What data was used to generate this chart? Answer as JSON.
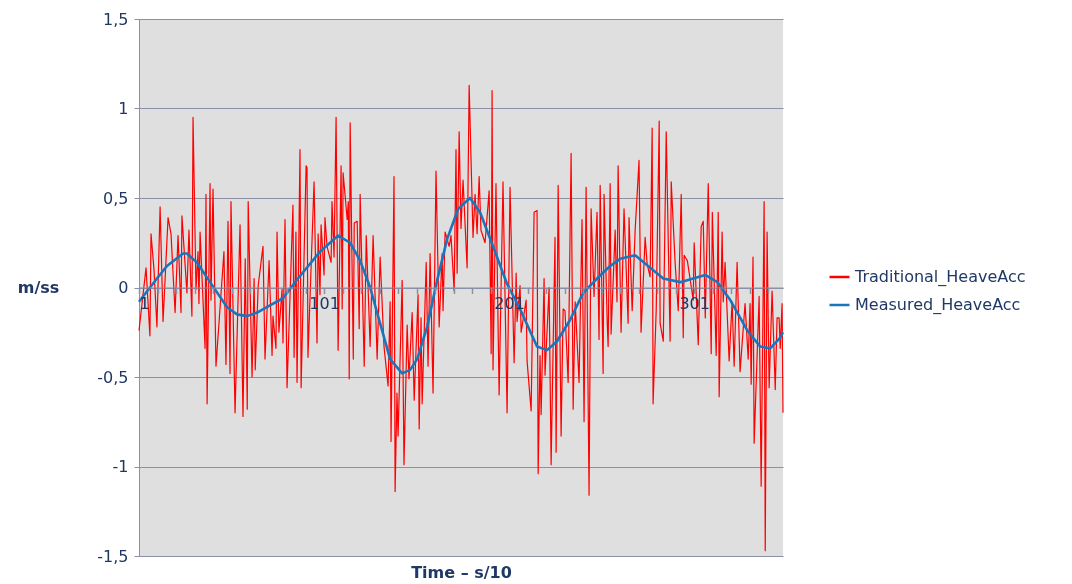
{
  "chart_data": {
    "type": "line",
    "xlabel": "Time – s/10",
    "ylabel": "m/ss",
    "xlim": [
      1,
      349
    ],
    "ylim": [
      -1.5,
      1.5
    ],
    "xticks": [
      1,
      {
        "value": 11,
        "label": null
      },
      {
        "value": 21,
        "label": null
      },
      {
        "value": 31,
        "label": null
      },
      {
        "value": 41,
        "label": null
      },
      {
        "value": 51,
        "label": null
      },
      {
        "value": 61,
        "label": null
      },
      {
        "value": 71,
        "label": null
      },
      {
        "value": 81,
        "label": null
      },
      {
        "value": 91,
        "label": null
      },
      101,
      {
        "value": 111,
        "label": null
      },
      {
        "value": 121,
        "label": null
      },
      {
        "value": 131,
        "label": null
      },
      {
        "value": 141,
        "label": null
      },
      {
        "value": 151,
        "label": null
      },
      {
        "value": 161,
        "label": null
      },
      {
        "value": 171,
        "label": null
      },
      {
        "value": 181,
        "label": null
      },
      {
        "value": 191,
        "label": null
      },
      201,
      {
        "value": 211,
        "label": null
      },
      {
        "value": 221,
        "label": null
      },
      {
        "value": 231,
        "label": null
      },
      {
        "value": 241,
        "label": null
      },
      {
        "value": 251,
        "label": null
      },
      {
        "value": 261,
        "label": null
      },
      {
        "value": 271,
        "label": null
      },
      {
        "value": 281,
        "label": null
      },
      {
        "value": 291,
        "label": null
      },
      301,
      {
        "value": 311,
        "label": null
      },
      {
        "value": 321,
        "label": null
      },
      {
        "value": 331,
        "label": null
      },
      {
        "value": 341,
        "label": null
      }
    ],
    "yticks": [
      {
        "value": -1.5,
        "label": "-1,5"
      },
      -1,
      {
        "value": -0.5,
        "label": "-0,5"
      },
      0,
      {
        "value": 0.5,
        "label": "0,5"
      },
      1,
      {
        "value": 1.5,
        "label": "1,5"
      }
    ],
    "grid": "y",
    "legend": "right",
    "series": [
      {
        "name": "Traditional_HeaveAcc",
        "color": "#ff0000",
        "x": [
          1.0,
          4.8,
          6.9,
          7.5,
          9.1,
          10.7,
          12.4,
          14.0,
          16.7,
          18.3,
          20.5,
          22.1,
          23.7,
          24.2,
          26.9,
          28.0,
          29.6,
          30.2,
          31.8,
          32.9,
          33.4,
          34.0,
          36.7,
          37.2,
          37.8,
          39.4,
          39.9,
          41.0,
          42.6,
          46.9,
          48.0,
          49.1,
          50.2,
          50.7,
          52.9,
          55.6,
          57.2,
          58.4,
          59.5,
          60.0,
          62.1,
          63.2,
          63.8,
          65.4,
          68.0,
          69.1,
          71.3,
          72.9,
          73.4,
          75.0,
          75.6,
          76.6,
          78.3,
          78.8,
          79.9,
          81.0,
          84.2,
          84.8,
          85.8,
          86.4,
          88.0,
          88.6,
          91.3,
          91.8,
          92.3,
          95.6,
          97.2,
          97.8,
          98.8,
          99.4,
          101.0,
          101.5,
          102.6,
          104.8,
          105.3,
          106.4,
          107.5,
          108.6,
          110.2,
          110.8,
          111.3,
          113.5,
          114.1,
          114.6,
          115.1,
          116.8,
          117.3,
          118.9,
          120.0,
          120.5,
          122.7,
          123.8,
          125.9,
          127.5,
          129.7,
          131.3,
          133.4,
          135.6,
          136.7,
          137.2,
          138.8,
          139.4,
          140.4,
          141.0,
          143.2,
          144.2,
          145.9,
          146.9,
          148.6,
          149.7,
          151.8,
          152.4,
          153.4,
          154.0,
          156.2,
          157.2,
          158.3,
          159.9,
          161.5,
          163.2,
          164.8,
          165.3,
          166.4,
          168.6,
          169.6,
          171.3,
          172.3,
          172.9,
          174.0,
          175.0,
          176.1,
          178.3,
          179.4,
          181.5,
          182.6,
          183.7,
          184.8,
          185.8,
          188.0,
          190.2,
          191.3,
          191.8,
          192.3,
          193.9,
          195.6,
          197.7,
          199.9,
          201.5,
          203.7,
          204.8,
          205.3,
          206.9,
          207.5,
          210.2,
          210.7,
          212.9,
          214.5,
          216.1,
          216.7,
          217.7,
          218.3,
          219.9,
          220.4,
          222.6,
          223.7,
          225.8,
          226.4,
          227.5,
          229.1,
          230.2,
          231.2,
          232.9,
          234.5,
          235.6,
          236.7,
          238.8,
          240.4,
          241.5,
          242.6,
          244.2,
          245.3,
          246.9,
          248.5,
          249.6,
          250.2,
          251.8,
          252.3,
          254.0,
          254.5,
          255.6,
          256.1,
          258.3,
          259.3,
          259.9,
          261.5,
          263.1,
          265.3,
          265.8,
          267.5,
          269.1,
          271.2,
          272.3,
          274.5,
          275.6,
          277.2,
          278.3,
          278.8,
          280.5,
          282.1,
          282.6,
          284.3,
          285.9,
          288.0,
          288.6,
          290.7,
          292.4,
          294.0,
          295.1,
          295.6,
          297.3,
          300.5,
          301.0,
          303.2,
          304.8,
          305.9,
          307.0,
          308.6,
          310.2,
          310.8,
          312.9,
          314.0,
          314.5,
          316.1,
          316.7,
          317.7,
          319.9,
          321.5,
          322.6,
          324.2,
          325.8,
          328.5,
          330.2,
          331.2,
          331.8,
          332.8,
          333.4,
          336.1,
          337.2,
          338.8,
          339.4,
          340.4,
          341.5,
          343.1,
          344.8,
          345.8,
          346.9,
          347.5,
          348.5,
          349.0
        ],
        "values": [
          -0.24,
          0.11,
          -0.27,
          0.3,
          0.1,
          -0.22,
          0.45,
          -0.19,
          0.39,
          0.3,
          -0.14,
          0.29,
          -0.14,
          0.4,
          -0.03,
          0.32,
          -0.16,
          0.95,
          -0.01,
          0.2,
          -0.09,
          0.31,
          -0.34,
          0.52,
          -0.65,
          0.58,
          -0.07,
          0.55,
          -0.44,
          0.2,
          -0.43,
          0.37,
          -0.48,
          0.48,
          -0.7,
          0.35,
          -0.72,
          0.16,
          -0.68,
          0.48,
          -0.5,
          0.05,
          -0.46,
          0.01,
          0.23,
          -0.4,
          0.15,
          -0.38,
          -0.16,
          -0.34,
          0.31,
          -0.25,
          -0.01,
          -0.31,
          0.38,
          -0.56,
          0.46,
          -0.39,
          0.31,
          -0.53,
          0.77,
          -0.56,
          0.68,
          0.67,
          -0.39,
          0.59,
          -0.31,
          0.3,
          -0.04,
          0.35,
          0.07,
          0.39,
          0.23,
          0.14,
          0.48,
          0.17,
          0.95,
          -0.35,
          0.68,
          -0.12,
          0.64,
          0.38,
          0.48,
          -0.51,
          0.92,
          -0.4,
          0.36,
          0.37,
          -0.23,
          0.52,
          -0.44,
          0.29,
          -0.33,
          0.29,
          -0.4,
          0.17,
          -0.33,
          -0.55,
          -0.08,
          -0.86,
          0.62,
          -1.14,
          -0.59,
          -0.83,
          0.04,
          -0.99,
          -0.21,
          -0.51,
          -0.14,
          -0.63,
          -0.04,
          -0.79,
          -0.17,
          -0.65,
          0.14,
          -0.44,
          0.19,
          -0.59,
          0.65,
          -0.22,
          0.19,
          -0.13,
          0.31,
          0.23,
          0.29,
          -0.02,
          0.77,
          0.08,
          0.87,
          0.33,
          0.6,
          0.11,
          1.13,
          0.28,
          0.52,
          0.3,
          0.62,
          0.32,
          0.25,
          0.54,
          -0.37,
          1.1,
          -0.46,
          0.58,
          -0.6,
          0.59,
          -0.7,
          0.56,
          -0.42,
          0.08,
          -0.19,
          0.01,
          -0.25,
          -0.07,
          -0.41,
          -0.69,
          0.42,
          0.43,
          -1.04,
          -0.38,
          -0.71,
          0.05,
          -0.49,
          0.0,
          -0.99,
          0.28,
          -0.92,
          0.57,
          -0.83,
          -0.12,
          -0.13,
          -0.53,
          0.75,
          -0.68,
          -0.08,
          -0.53,
          0.38,
          -0.75,
          0.56,
          -1.16,
          0.44,
          -0.05,
          0.42,
          -0.29,
          0.57,
          -0.48,
          0.52,
          -0.19,
          -0.33,
          0.58,
          -0.26,
          0.32,
          -0.08,
          0.68,
          -0.25,
          0.44,
          -0.2,
          0.39,
          -0.13,
          0.32,
          0.71,
          -0.25,
          0.28,
          0.13,
          0.06,
          0.89,
          -0.65,
          -0.12,
          0.93,
          -0.2,
          -0.3,
          0.87,
          -0.3,
          0.59,
          0.14,
          -0.13,
          0.52,
          -0.28,
          0.18,
          0.15,
          -0.07,
          0.25,
          -0.32,
          0.34,
          0.37,
          -0.17,
          0.58,
          -0.37,
          0.42,
          -0.38,
          0.42,
          -0.61,
          0.31,
          -0.08,
          0.14,
          -0.41,
          -0.08,
          -0.44,
          0.14,
          -0.47,
          -0.09,
          -0.4,
          -0.09,
          -0.54,
          0.17,
          -0.87,
          -0.05,
          -1.11,
          0.48,
          -1.47,
          0.31,
          -0.56,
          -0.02,
          -0.57,
          -0.17,
          -0.17,
          -0.34,
          -0.09,
          -0.7
        ]
      },
      {
        "name": "Measured_HeaveAcc",
        "color": "#1b75bb",
        "x": [
          1,
          10.7,
          16.1,
          24.8,
          26.9,
          32.3,
          39.4,
          48.6,
          54.0,
          59.4,
          64.8,
          71.8,
          78.8,
          86.9,
          98.8,
          108.6,
          115.1,
          120.5,
          125.9,
          131.3,
          136.7,
          143.2,
          147.5,
          151.3,
          156.7,
          162.1,
          167.5,
          173.5,
          179.9,
          185.3,
          192.3,
          199.9,
          206.9,
          216.1,
          221.5,
          226.9,
          234.0,
          241.0,
          248.5,
          255.6,
          261.0,
          269.1,
          276.1,
          284.3,
          293.5,
          300.5,
          307.0,
          313.5,
          320.5,
          329.7,
          336.7,
          342.1,
          347.5,
          349
        ],
        "values": [
          -0.08,
          0.05,
          0.12,
          0.19,
          0.19,
          0.14,
          0.03,
          -0.11,
          -0.15,
          -0.16,
          -0.14,
          -0.1,
          -0.06,
          0.05,
          0.2,
          0.29,
          0.25,
          0.15,
          0.0,
          -0.2,
          -0.4,
          -0.48,
          -0.46,
          -0.4,
          -0.22,
          0.04,
          0.27,
          0.44,
          0.5,
          0.42,
          0.23,
          0.02,
          -0.12,
          -0.33,
          -0.35,
          -0.3,
          -0.18,
          -0.03,
          0.05,
          0.12,
          0.16,
          0.18,
          0.12,
          0.05,
          0.03,
          0.05,
          0.07,
          0.03,
          -0.07,
          -0.24,
          -0.33,
          -0.34,
          -0.28,
          -0.25
        ]
      }
    ]
  }
}
